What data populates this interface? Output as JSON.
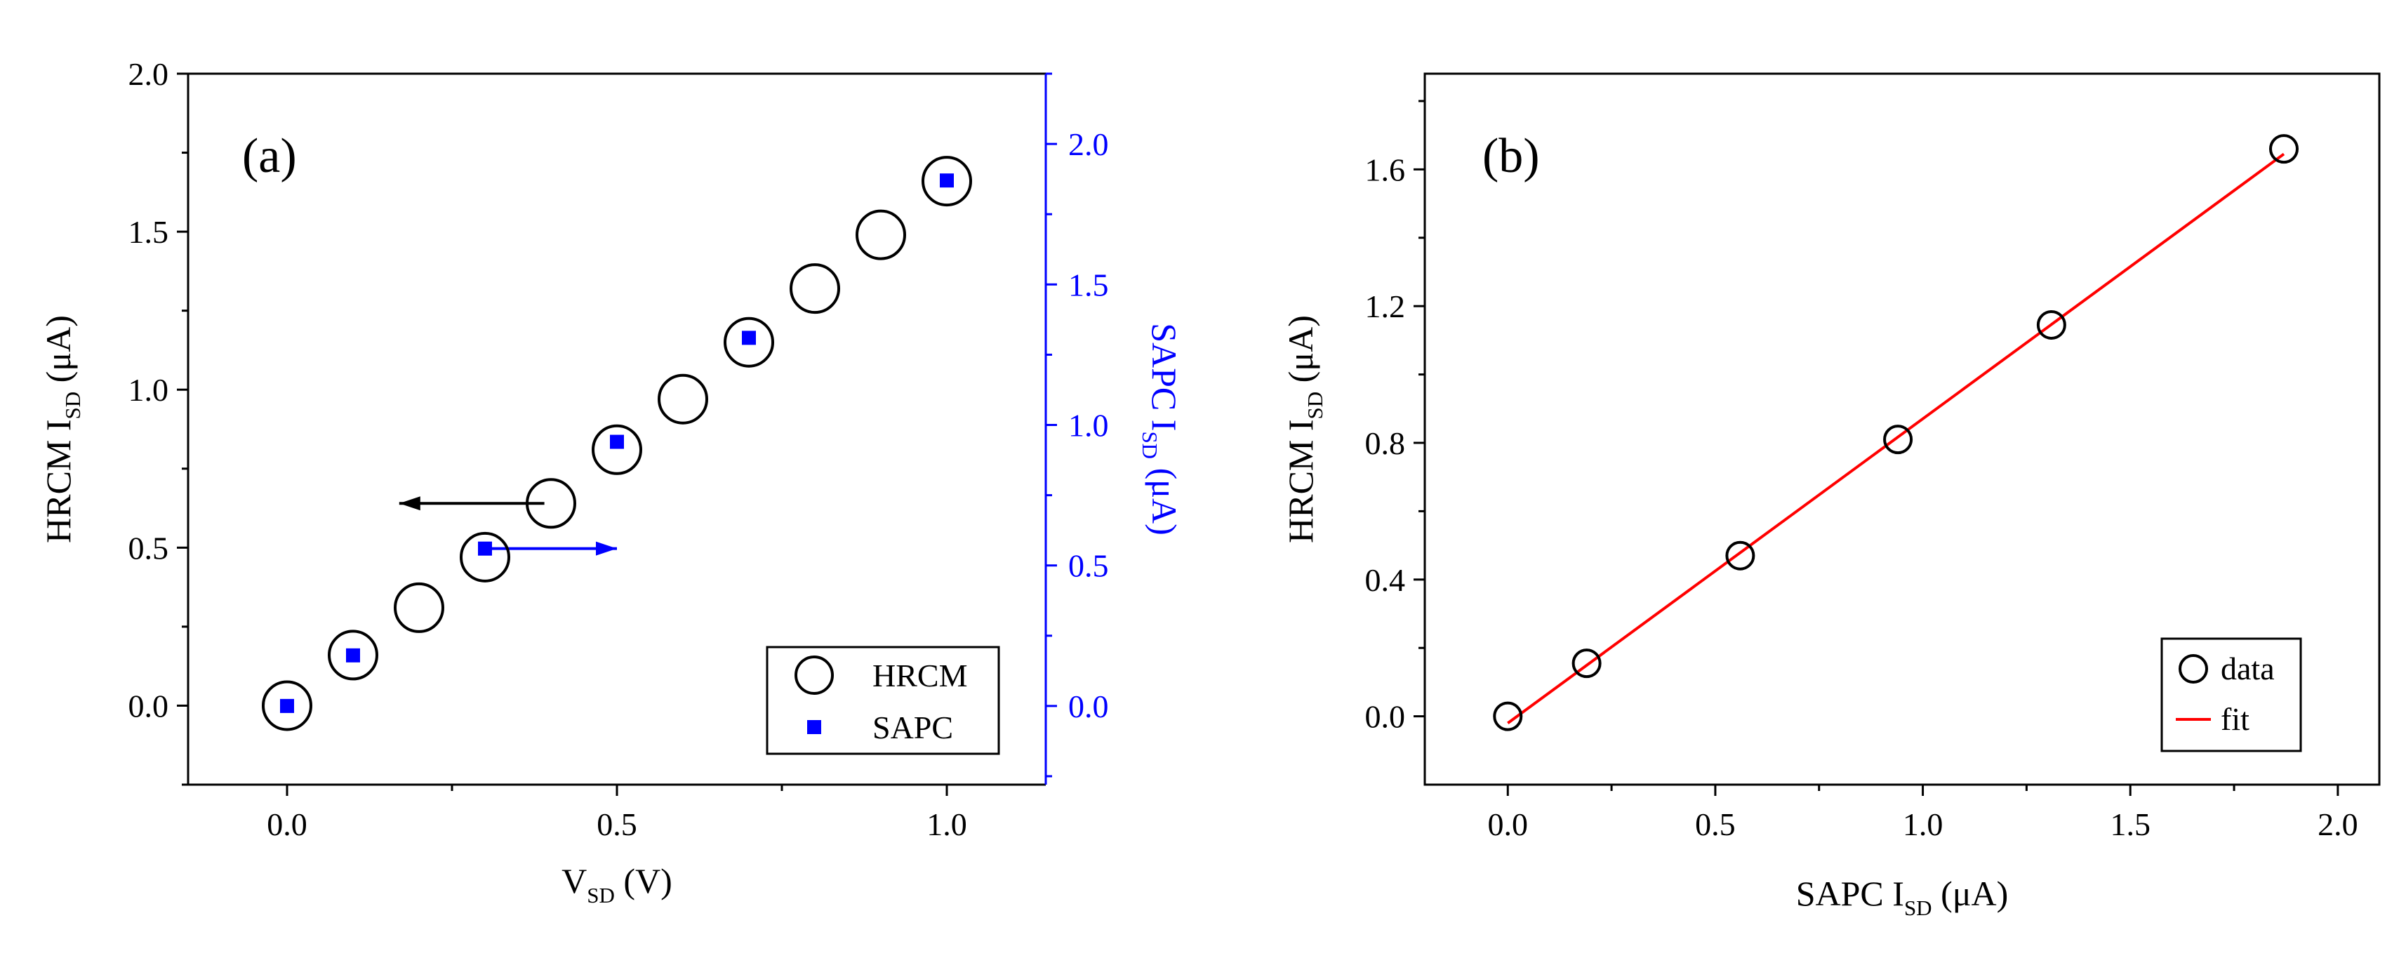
{
  "chart_data": [
    {
      "type": "scatter",
      "panel_label": "(a)",
      "xlabel": "V",
      "xlabel_sub": "SD",
      "xlabel_unit": " (V)",
      "xlim": [
        -0.15,
        1.15
      ],
      "x_ticks": [
        0.0,
        0.5,
        1.0
      ],
      "x_tick_labels": [
        "0.0",
        "0.5",
        "1.0"
      ],
      "ylabel": "HRCM I",
      "ylabel_sub": "SD",
      "ylabel_unit": " (μA)",
      "ylim": [
        -0.25,
        2.0
      ],
      "y_ticks": [
        0.0,
        0.5,
        1.0,
        1.5,
        2.0
      ],
      "y_tick_labels": [
        "0.0",
        "0.5",
        "1.0",
        "1.5",
        "2.0"
      ],
      "y2label": "SAPC I",
      "y2label_sub": "SD",
      "y2label_unit": " (μA)",
      "y2lim": [
        -0.28,
        2.25
      ],
      "y2_ticks": [
        0.0,
        0.5,
        1.0,
        1.5,
        2.0
      ],
      "y2_tick_labels": [
        "0.0",
        "0.5",
        "1.0",
        "1.5",
        "2.0"
      ],
      "y2_color": "#0000ff",
      "series": [
        {
          "name": "HRCM",
          "axis": "left",
          "marker": "open-circle",
          "color": "#000000",
          "x": [
            0.0,
            0.1,
            0.2,
            0.3,
            0.4,
            0.5,
            0.6,
            0.7,
            0.8,
            0.9,
            1.0
          ],
          "y": [
            0.0,
            0.16,
            0.31,
            0.47,
            0.64,
            0.81,
            0.97,
            1.15,
            1.32,
            1.49,
            1.66
          ]
        },
        {
          "name": "SAPC",
          "axis": "right",
          "marker": "filled-square",
          "color": "#0000ff",
          "x": [
            0.0,
            0.1,
            0.3,
            0.5,
            0.7,
            1.0
          ],
          "y": [
            0.0,
            0.18,
            0.56,
            0.94,
            1.31,
            1.87
          ]
        }
      ],
      "legend": {
        "position": "bottom-right",
        "entries": [
          "HRCM",
          "SAPC"
        ]
      },
      "annotations": [
        {
          "kind": "arrow-left",
          "color": "#000000",
          "from_x": 0.39,
          "to_x": 0.17,
          "y": 0.64,
          "axis": "left"
        },
        {
          "kind": "arrow-right",
          "color": "#0000ff",
          "from_x": 0.3,
          "to_x": 0.5,
          "y": 0.56,
          "axis": "right"
        }
      ]
    },
    {
      "type": "scatter",
      "panel_label": "(b)",
      "xlabel": "SAPC I",
      "xlabel_sub": "SD",
      "xlabel_unit": " (μA)",
      "xlim": [
        -0.2,
        2.1
      ],
      "x_ticks": [
        0.0,
        0.5,
        1.0,
        1.5,
        2.0
      ],
      "x_tick_labels": [
        "0.0",
        "0.5",
        "1.0",
        "1.5",
        "2.0"
      ],
      "ylabel": "HRCM I",
      "ylabel_sub": "SD",
      "ylabel_unit": " (μA)",
      "ylim": [
        -0.2,
        1.88
      ],
      "y_ticks": [
        0.0,
        0.4,
        0.8,
        1.2,
        1.6
      ],
      "y_tick_labels": [
        "0.0",
        "0.4",
        "0.8",
        "1.2",
        "1.6"
      ],
      "series": [
        {
          "name": "data",
          "marker": "open-circle",
          "color": "#000000",
          "x": [
            0.0,
            0.19,
            0.56,
            0.94,
            1.31,
            1.87
          ],
          "y": [
            0.0,
            0.155,
            0.47,
            0.81,
            1.145,
            1.66
          ]
        },
        {
          "name": "fit",
          "line": true,
          "color": "#ff0000",
          "x": [
            0.0,
            1.87
          ],
          "y": [
            -0.02,
            1.645
          ]
        }
      ],
      "legend": {
        "position": "bottom-right",
        "entries": [
          "data",
          "fit"
        ]
      }
    }
  ]
}
